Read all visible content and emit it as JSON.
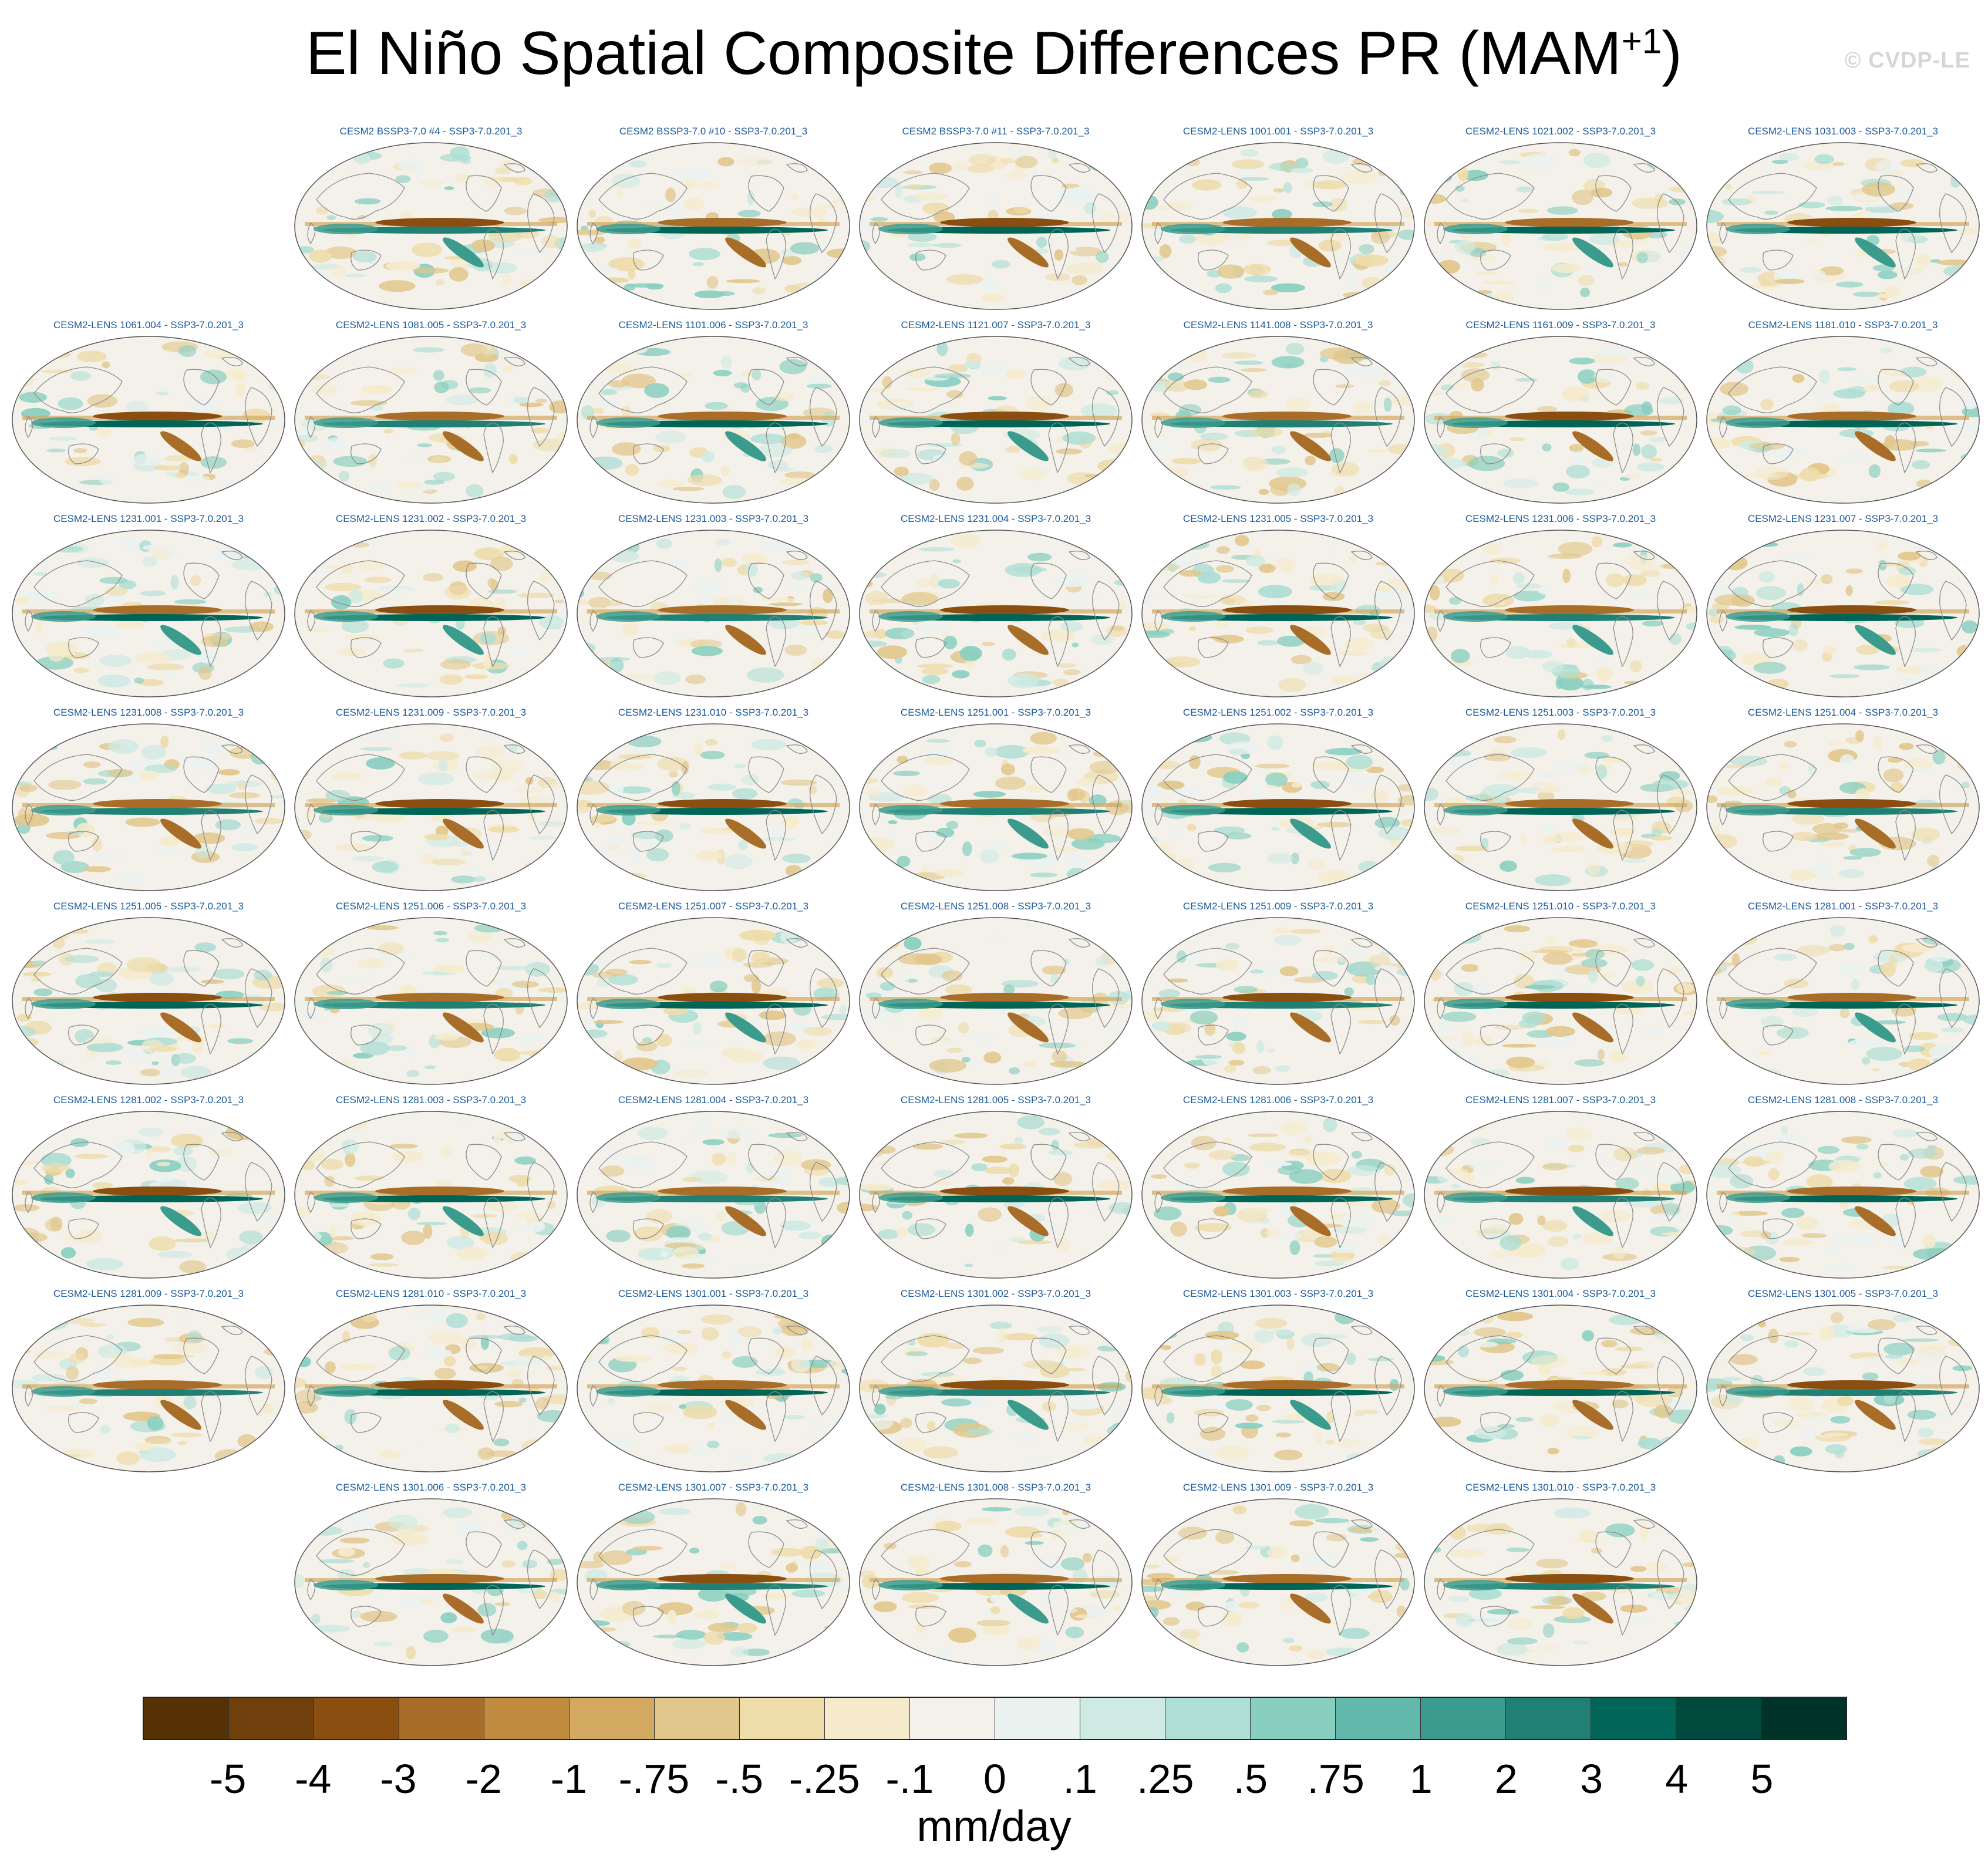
{
  "title": {
    "main": "El Niño Spatial Composite Differences PR (MAM",
    "superscript": "+1",
    "close": ")"
  },
  "watermark": "© CVDP-LE",
  "rows": [
    [
      "CESM2 BSSP3-7.0 #4 - SSP3-7.0.201_3",
      "CESM2 BSSP3-7.0 #10 - SSP3-7.0.201_3",
      "CESM2 BSSP3-7.0 #11 - SSP3-7.0.201_3",
      "CESM2-LENS 1001.001 - SSP3-7.0.201_3",
      "CESM2-LENS 1021.002 - SSP3-7.0.201_3",
      "CESM2-LENS 1031.003 - SSP3-7.0.201_3"
    ],
    [
      "CESM2-LENS 1061.004 - SSP3-7.0.201_3",
      "CESM2-LENS 1081.005 - SSP3-7.0.201_3",
      "CESM2-LENS 1101.006 - SSP3-7.0.201_3",
      "CESM2-LENS 1121.007 - SSP3-7.0.201_3",
      "CESM2-LENS 1141.008 - SSP3-7.0.201_3",
      "CESM2-LENS 1161.009 - SSP3-7.0.201_3",
      "CESM2-LENS 1181.010 - SSP3-7.0.201_3"
    ],
    [
      "CESM2-LENS 1231.001 - SSP3-7.0.201_3",
      "CESM2-LENS 1231.002 - SSP3-7.0.201_3",
      "CESM2-LENS 1231.003 - SSP3-7.0.201_3",
      "CESM2-LENS 1231.004 - SSP3-7.0.201_3",
      "CESM2-LENS 1231.005 - SSP3-7.0.201_3",
      "CESM2-LENS 1231.006 - SSP3-7.0.201_3",
      "CESM2-LENS 1231.007 - SSP3-7.0.201_3"
    ],
    [
      "CESM2-LENS 1231.008 - SSP3-7.0.201_3",
      "CESM2-LENS 1231.009 - SSP3-7.0.201_3",
      "CESM2-LENS 1231.010 - SSP3-7.0.201_3",
      "CESM2-LENS 1251.001 - SSP3-7.0.201_3",
      "CESM2-LENS 1251.002 - SSP3-7.0.201_3",
      "CESM2-LENS 1251.003 - SSP3-7.0.201_3",
      "CESM2-LENS 1251.004 - SSP3-7.0.201_3"
    ],
    [
      "CESM2-LENS 1251.005 - SSP3-7.0.201_3",
      "CESM2-LENS 1251.006 - SSP3-7.0.201_3",
      "CESM2-LENS 1251.007 - SSP3-7.0.201_3",
      "CESM2-LENS 1251.008 - SSP3-7.0.201_3",
      "CESM2-LENS 1251.009 - SSP3-7.0.201_3",
      "CESM2-LENS 1251.010 - SSP3-7.0.201_3",
      "CESM2-LENS 1281.001 - SSP3-7.0.201_3"
    ],
    [
      "CESM2-LENS 1281.002 - SSP3-7.0.201_3",
      "CESM2-LENS 1281.003 - SSP3-7.0.201_3",
      "CESM2-LENS 1281.004 - SSP3-7.0.201_3",
      "CESM2-LENS 1281.005 - SSP3-7.0.201_3",
      "CESM2-LENS 1281.006 - SSP3-7.0.201_3",
      "CESM2-LENS 1281.007 - SSP3-7.0.201_3",
      "CESM2-LENS 1281.008 - SSP3-7.0.201_3"
    ],
    [
      "CESM2-LENS 1281.009 - SSP3-7.0.201_3",
      "CESM2-LENS 1281.010 - SSP3-7.0.201_3",
      "CESM2-LENS 1301.001 - SSP3-7.0.201_3",
      "CESM2-LENS 1301.002 - SSP3-7.0.201_3",
      "CESM2-LENS 1301.003 - SSP3-7.0.201_3",
      "CESM2-LENS 1301.004 - SSP3-7.0.201_3",
      "CESM2-LENS 1301.005 - SSP3-7.0.201_3"
    ],
    [
      "CESM2-LENS 1301.006 - SSP3-7.0.201_3",
      "CESM2-LENS 1301.007 - SSP3-7.0.201_3",
      "CESM2-LENS 1301.008 - SSP3-7.0.201_3",
      "CESM2-LENS 1301.009 - SSP3-7.0.201_3",
      "CESM2-LENS 1301.010 - SSP3-7.0.201_3"
    ]
  ],
  "colorbar": {
    "colors": [
      "#563105",
      "#6f3f0c",
      "#8a4f10",
      "#a86d28",
      "#c08b3f",
      "#d3a860",
      "#e2c78c",
      "#eedcab",
      "#f5ebcc",
      "#f4f1ea",
      "#eaf2f0",
      "#cfeae3",
      "#aeded4",
      "#89cfc0",
      "#62b8aa",
      "#3b9b8d",
      "#1f8073",
      "#006557",
      "#004a3d",
      "#003328"
    ],
    "tick_labels": [
      "-5",
      "-4",
      "-3",
      "-2",
      "-1",
      "-.75",
      "-.5",
      "-.25",
      "-.1",
      "0",
      ".1",
      ".25",
      ".5",
      ".75",
      "1",
      "2",
      "3",
      "4",
      "5"
    ],
    "units": "mm/day"
  }
}
